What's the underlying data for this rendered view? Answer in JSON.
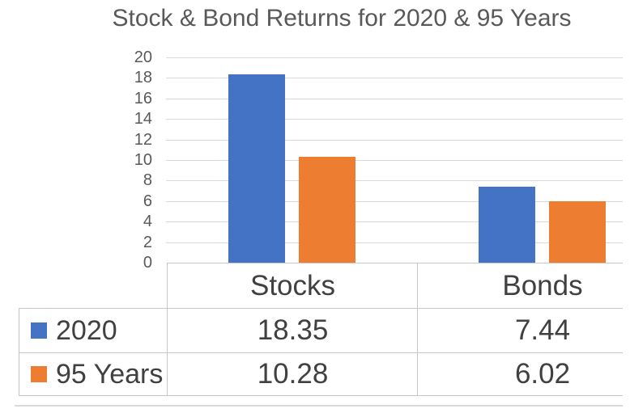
{
  "chart_data": {
    "type": "bar",
    "title": "Stock & Bond Returns for 2020 & 95 Years",
    "categories": [
      "Stocks",
      "Bonds"
    ],
    "series": [
      {
        "name": "2020",
        "color": "#4472C4",
        "values": [
          18.35,
          7.44
        ]
      },
      {
        "name": "95 Years",
        "color": "#ED7D31",
        "values": [
          10.28,
          6.02
        ]
      }
    ],
    "ylim": [
      0,
      20
    ],
    "yticks": [
      0,
      2,
      4,
      6,
      8,
      10,
      12,
      14,
      16,
      18,
      20
    ],
    "grid": true,
    "legend_position": "data-table-left",
    "data_table_shown": true
  },
  "colors": {
    "series_2020": "#4472C4",
    "series_95_years": "#ED7D31",
    "title_text": "#595959",
    "axis_text": "#595959",
    "table_text": "#404040",
    "gridline": "#D9D9D9",
    "table_border": "#C6C6C6"
  }
}
